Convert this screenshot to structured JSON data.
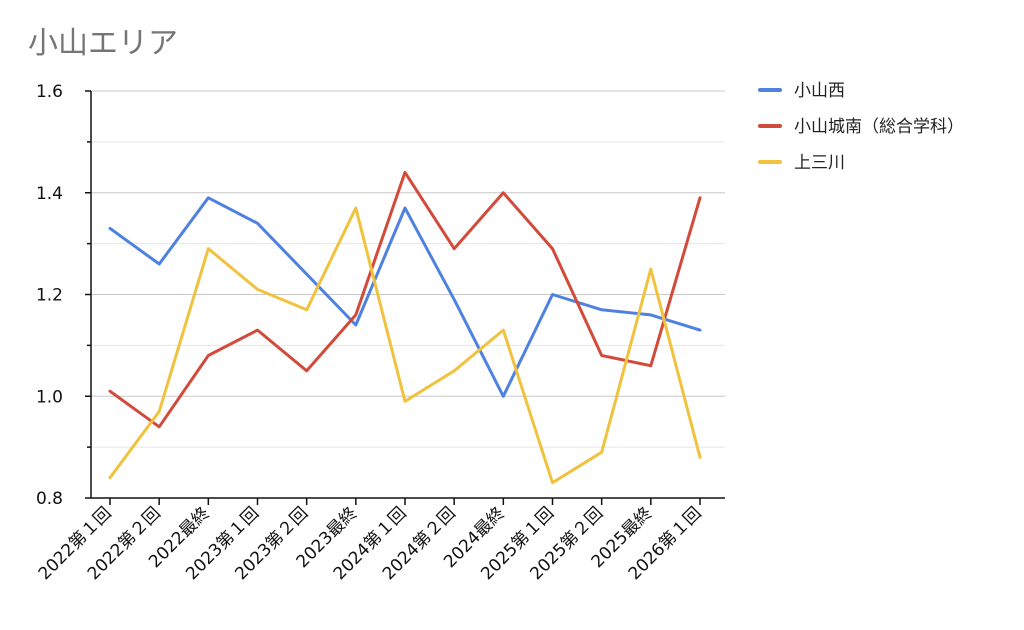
{
  "chart_data": {
    "type": "line",
    "title": "小山エリア",
    "xlabel": "",
    "ylabel": "",
    "ylim": [
      0.8,
      1.6
    ],
    "yticks": [
      "0.8",
      "1.0",
      "1.2",
      "1.4",
      "1.6"
    ],
    "grid": true,
    "legend_position": "right",
    "categories": [
      "2022第１回",
      "2022第２回",
      "2022最終",
      "2023第１回",
      "2023第２回",
      "2023最終",
      "2024第１回",
      "2024第２回",
      "2024最終",
      "2025第１回",
      "2025第２回",
      "2025最終",
      "2026第１回"
    ],
    "series": [
      {
        "name": "小山西",
        "color": "#4f82e0",
        "values": [
          1.33,
          1.26,
          1.39,
          1.34,
          1.24,
          1.14,
          1.37,
          1.19,
          1.0,
          1.2,
          1.17,
          1.16,
          1.13
        ]
      },
      {
        "name": "小山城南（総合学科）",
        "color": "#d24b3a",
        "values": [
          1.01,
          0.94,
          1.08,
          1.13,
          1.05,
          1.16,
          1.44,
          1.29,
          1.4,
          1.29,
          1.08,
          1.06,
          1.39
        ]
      },
      {
        "name": "上三川",
        "color": "#f0c23e",
        "values": [
          0.84,
          0.97,
          1.29,
          1.21,
          1.17,
          1.37,
          0.99,
          1.05,
          1.13,
          0.83,
          0.89,
          1.25,
          0.88
        ]
      }
    ]
  }
}
